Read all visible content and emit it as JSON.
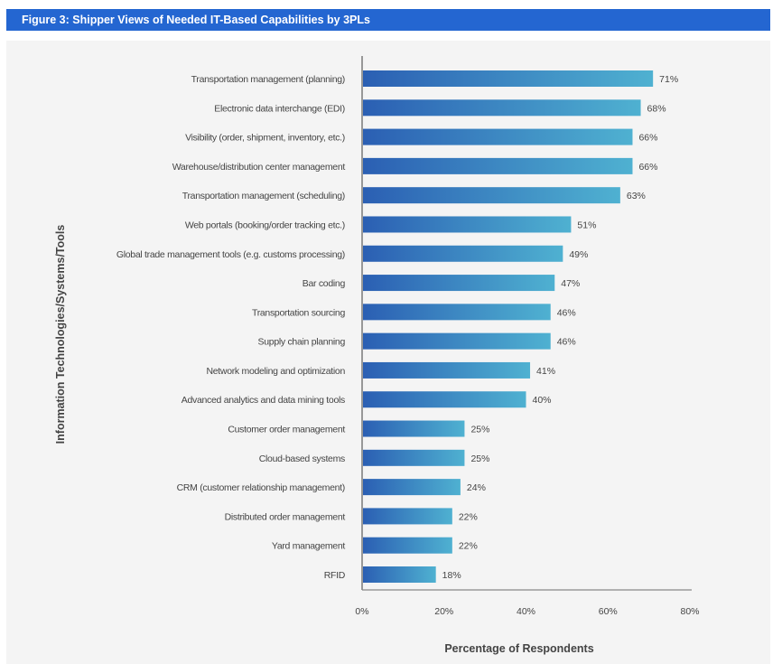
{
  "chart_data": {
    "type": "bar",
    "orientation": "horizontal",
    "title": "Figure 3: Shipper Views of Needed IT-Based Capabilities by 3PLs",
    "xlabel": "Percentage of Respondents",
    "ylabel": "Information Technologies/Systems/Tools",
    "xlim": [
      0,
      80
    ],
    "xticks": [
      "0%",
      "20%",
      "40%",
      "60%",
      "80%"
    ],
    "grid": false,
    "categories": [
      "Transportation management (planning)",
      "Electronic data interchange (EDI)",
      "Visibility (order, shipment, inventory, etc.)",
      "Warehouse/distribution center management",
      "Transportation management (scheduling)",
      "Web portals (booking/order tracking etc.)",
      "Global trade management tools (e.g. customs processing)",
      "Bar coding",
      "Transportation sourcing",
      "Supply chain planning",
      "Network modeling and optimization",
      "Advanced analytics and data mining tools",
      "Customer order management",
      "Cloud-based systems",
      "CRM (customer relationship management)",
      "Distributed order management",
      "Yard management",
      "RFID"
    ],
    "values": [
      71,
      68,
      66,
      66,
      63,
      51,
      49,
      47,
      46,
      46,
      41,
      40,
      25,
      25,
      24,
      22,
      22,
      18
    ],
    "data_labels": [
      "71%",
      "68%",
      "66%",
      "66%",
      "63%",
      "51%",
      "49%",
      "47%",
      "46%",
      "46%",
      "41%",
      "40%",
      "25%",
      "25%",
      "24%",
      "22%",
      "22%",
      "18%"
    ],
    "colors": {
      "bar_start": "#2b5fb3",
      "bar_end": "#4fb1d1",
      "header": "#2466d1",
      "panel": "#f4f4f4"
    }
  }
}
